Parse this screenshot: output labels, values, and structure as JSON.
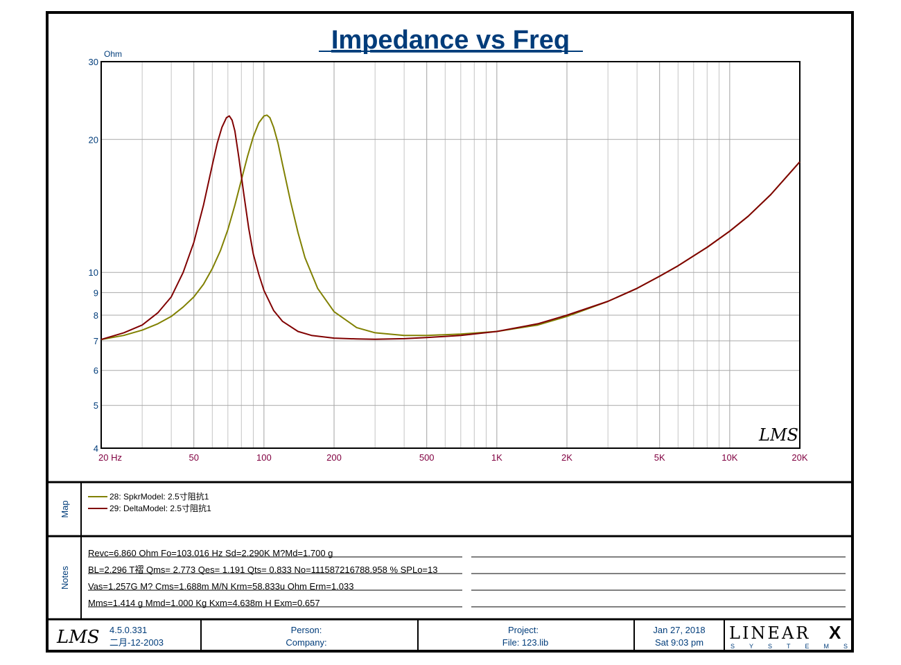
{
  "chart_data": {
    "type": "line",
    "title": "Impedance vs Freq",
    "ylabel": "Ohm",
    "xlabel": "",
    "x_scale": "log",
    "y_scale": "log",
    "xlim": [
      20,
      20000
    ],
    "ylim": [
      4,
      30
    ],
    "grid": true,
    "x_ticks": [
      {
        "v": 20,
        "label": "20  Hz"
      },
      {
        "v": 50,
        "label": "50"
      },
      {
        "v": 100,
        "label": "100"
      },
      {
        "v": 200,
        "label": "200"
      },
      {
        "v": 500,
        "label": "500"
      },
      {
        "v": 1000,
        "label": "1K"
      },
      {
        "v": 2000,
        "label": "2K"
      },
      {
        "v": 5000,
        "label": "5K"
      },
      {
        "v": 10000,
        "label": "10K"
      },
      {
        "v": 20000,
        "label": "20K"
      }
    ],
    "y_ticks": [
      {
        "v": 4,
        "label": "4"
      },
      {
        "v": 5,
        "label": "5"
      },
      {
        "v": 6,
        "label": "6"
      },
      {
        "v": 7,
        "label": "7"
      },
      {
        "v": 8,
        "label": "8"
      },
      {
        "v": 9,
        "label": "9"
      },
      {
        "v": 10,
        "label": "10"
      },
      {
        "v": 20,
        "label": "20"
      },
      {
        "v": 30,
        "label": "30"
      }
    ],
    "series": [
      {
        "name": "28: SpkrModel: 2.5寸阻抗1",
        "color": "#808000",
        "x": [
          20,
          25,
          30,
          35,
          40,
          45,
          50,
          55,
          60,
          65,
          70,
          75,
          80,
          85,
          90,
          95,
          100,
          103,
          106,
          110,
          115,
          120,
          130,
          140,
          150,
          170,
          200,
          250,
          300,
          400,
          500,
          700,
          1000,
          1500,
          2000,
          3000,
          4000,
          5000,
          6000,
          8000,
          10000,
          12000,
          15000,
          20000
        ],
        "y": [
          7.05,
          7.2,
          7.4,
          7.65,
          7.95,
          8.35,
          8.8,
          9.4,
          10.2,
          11.2,
          12.5,
          14.2,
          16.2,
          18.3,
          20.3,
          21.8,
          22.6,
          22.7,
          22.4,
          21.3,
          19.6,
          17.6,
          14.5,
          12.3,
          10.8,
          9.2,
          8.15,
          7.5,
          7.3,
          7.2,
          7.2,
          7.25,
          7.35,
          7.6,
          7.95,
          8.6,
          9.2,
          9.8,
          10.35,
          11.4,
          12.4,
          13.4,
          15.0,
          17.8
        ]
      },
      {
        "name": "29: DeltaModel: 2.5寸阻抗1",
        "color": "#800000",
        "x": [
          20,
          25,
          30,
          35,
          40,
          45,
          50,
          55,
          60,
          63,
          66,
          69,
          71,
          73,
          75,
          78,
          82,
          86,
          90,
          95,
          100,
          110,
          120,
          140,
          160,
          200,
          250,
          300,
          400,
          500,
          700,
          1000,
          1500,
          2000,
          3000,
          4000,
          5000,
          6000,
          8000,
          10000,
          12000,
          15000,
          20000
        ],
        "y": [
          7.05,
          7.3,
          7.6,
          8.1,
          8.8,
          10.0,
          11.7,
          14.2,
          17.5,
          19.6,
          21.3,
          22.4,
          22.6,
          22.1,
          20.9,
          18.2,
          15.0,
          12.6,
          11.0,
          9.9,
          9.1,
          8.2,
          7.75,
          7.35,
          7.2,
          7.1,
          7.07,
          7.06,
          7.08,
          7.12,
          7.2,
          7.35,
          7.65,
          8.0,
          8.6,
          9.2,
          9.8,
          10.35,
          11.4,
          12.4,
          13.4,
          15.0,
          17.8
        ]
      }
    ]
  },
  "map_panel": {
    "label": "Map",
    "legend": [
      {
        "text": "28: SpkrModel: 2.5寸阻抗1",
        "color": "#808000"
      },
      {
        "text": "29: DeltaModel: 2.5寸阻抗1",
        "color": "#800000"
      }
    ]
  },
  "notes_panel": {
    "label": "Notes",
    "lines": [
      "Revc=6.860 Ohm  Fo=103.016 Hz  Sd=2.290K M?Md=1.700 g",
      "BL=2.296 T褶  Qms= 2.773  Qes= 1.191  Qts= 0.833  No=111587216788.958 %  SPLo=13",
      "Vas=1.257G M? Cms=1.688m M/N  Krm=58.833u Ohm  Erm=1.033",
      "Mms=1.414 g  Mmd=1.000 Kg  Kxm=4.638m H  Exm=0.657"
    ]
  },
  "footer": {
    "logo": "LMS",
    "version": "4.5.0.331",
    "version_date": "二月-12-2003",
    "person_label": "Person:",
    "company_label": "Company:",
    "project_label": "Project:",
    "file_label": "File: 123.lib",
    "date": "Jan 27, 2018",
    "time": "Sat  9:03 pm",
    "brand_main": "LINEAR",
    "brand_x": "X",
    "brand_sub": "SYSTEMS"
  },
  "watermark": "LMS"
}
